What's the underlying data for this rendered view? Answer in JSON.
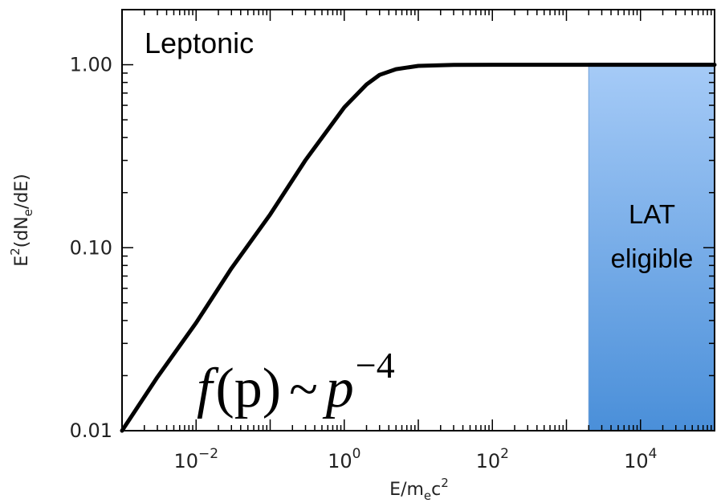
{
  "chart_data": {
    "type": "line",
    "title": "",
    "panel_label": "Leptonic",
    "xlabel": {
      "base": "E/m",
      "sub": "e",
      "tail": "c",
      "sup": "2"
    },
    "ylabel": {
      "pre": "E",
      "sup": "2",
      "mid": "(dN",
      "sub": "e",
      "post": "/dE)"
    },
    "x_scale": "log",
    "y_scale": "log",
    "xlim": [
      0.001,
      100000
    ],
    "ylim": [
      0.01,
      2
    ],
    "x_ticks": [
      {
        "value": 0.01,
        "base": "10",
        "exp": "−2"
      },
      {
        "value": 1,
        "base": "10",
        "exp": "0"
      },
      {
        "value": 100,
        "base": "10",
        "exp": "2"
      },
      {
        "value": 10000,
        "base": "10",
        "exp": "4"
      }
    ],
    "y_ticks": [
      {
        "value": 0.01,
        "label": "0.01"
      },
      {
        "value": 0.1,
        "label": "0.10"
      },
      {
        "value": 1,
        "label": "1.00"
      }
    ],
    "grid": false,
    "legend": "none",
    "series": [
      {
        "color": "#000000",
        "x": [
          0.001,
          0.003,
          0.01,
          0.03,
          0.1,
          0.3,
          1,
          2,
          3,
          5,
          10,
          30,
          100,
          1000,
          100000
        ],
        "y": [
          0.01,
          0.0196,
          0.0389,
          0.0772,
          0.152,
          0.301,
          0.585,
          0.78,
          0.88,
          0.945,
          0.985,
          0.998,
          1.0,
          1.0,
          1.0
        ]
      }
    ],
    "band": {
      "x_range": [
        2000,
        100000
      ],
      "label_lines": [
        "LAT",
        "eligible"
      ],
      "color_top": "#a6cbf7",
      "color_bottom": "#4a8fd9"
    },
    "annotation": {
      "fn": "f",
      "arg": "(p)",
      "tilde": "~",
      "var": "p",
      "exp": "−4"
    }
  }
}
